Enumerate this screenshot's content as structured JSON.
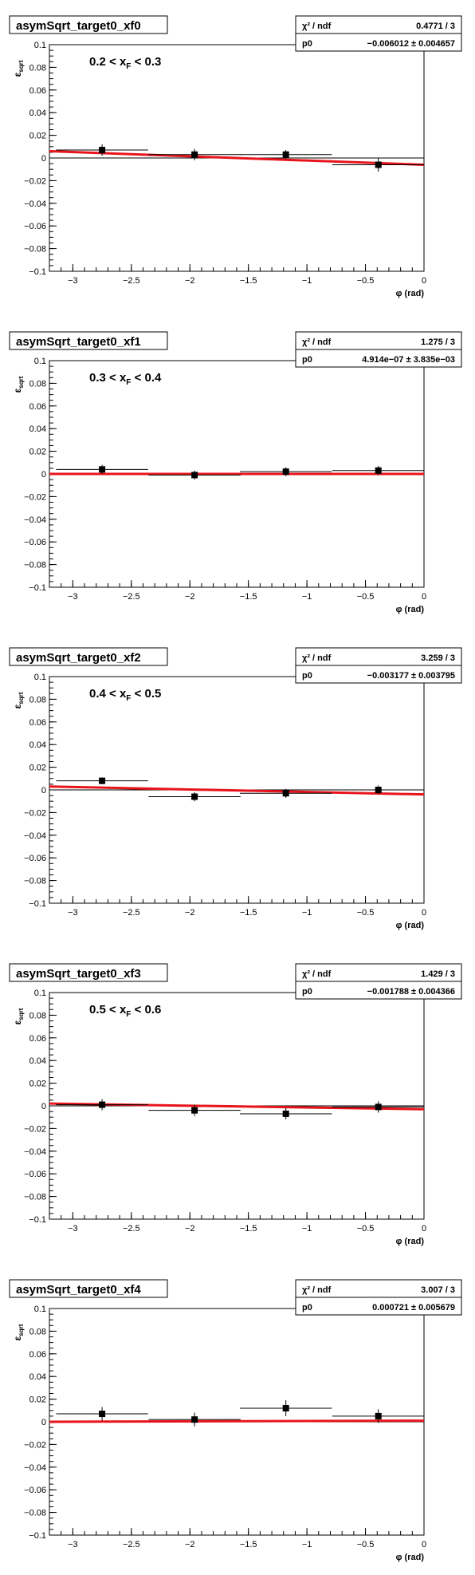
{
  "chart_data": [
    {
      "type": "scatter",
      "title": "asymSqrt_target0_xf0",
      "annotation": "0.2 < x_F < 0.3",
      "annotation_main": "0.2 < x",
      "annotation_sub": "F",
      "annotation_tail": " < 0.3",
      "xlabel": "φ (rad)",
      "ylabel_main": "ε",
      "ylabel_sub": "sqrt",
      "xlim": [
        -3.2,
        0
      ],
      "ylim": [
        -0.1,
        0.1
      ],
      "xticks": [
        -3,
        -2.5,
        -2,
        -1.5,
        -1,
        -0.5,
        0
      ],
      "xtick_labels": [
        "−3",
        "−2.5",
        "−2",
        "−1.5",
        "−1",
        "−0.5",
        "0"
      ],
      "yticks": [
        -0.1,
        -0.08,
        -0.06,
        -0.04,
        -0.02,
        0,
        0.02,
        0.04,
        0.06,
        0.08,
        0.1
      ],
      "ytick_labels": [
        "−0.1",
        "−0.08",
        "−0.06",
        "−0.04",
        "−0.02",
        "0",
        "0.02",
        "0.04",
        "0.06",
        "0.08",
        "0.1"
      ],
      "grid": false,
      "points": [
        {
          "x": -2.75,
          "y": 0.007,
          "xerr": 0.393,
          "yerr": 0.005
        },
        {
          "x": -1.96,
          "y": 0.003,
          "xerr": 0.393,
          "yerr": 0.005
        },
        {
          "x": -1.18,
          "y": 0.003,
          "xerr": 0.393,
          "yerr": 0.004
        },
        {
          "x": -0.39,
          "y": -0.006,
          "xerr": 0.393,
          "yerr": 0.006
        }
      ],
      "fit": {
        "p0": -0.006012,
        "start": 0.006,
        "end": -0.006
      },
      "stats": {
        "chi2_label": "χ² / ndf",
        "chi2_value": "0.4771 / 3",
        "p0_label": "p0",
        "p0_value": "−0.006012 ± 0.004657"
      }
    },
    {
      "type": "scatter",
      "title": "asymSqrt_target0_xf1",
      "annotation": "0.3 < x_F < 0.4",
      "annotation_main": "0.3 < x",
      "annotation_sub": "F",
      "annotation_tail": " < 0.4",
      "xlabel": "φ (rad)",
      "ylabel_main": "ε",
      "ylabel_sub": "sqrt",
      "xlim": [
        -3.2,
        0
      ],
      "ylim": [
        -0.1,
        0.1
      ],
      "xticks": [
        -3,
        -2.5,
        -2,
        -1.5,
        -1,
        -0.5,
        0
      ],
      "xtick_labels": [
        "−3",
        "−2.5",
        "−2",
        "−1.5",
        "−1",
        "−0.5",
        "0"
      ],
      "yticks": [
        -0.1,
        -0.08,
        -0.06,
        -0.04,
        -0.02,
        0,
        0.02,
        0.04,
        0.06,
        0.08,
        0.1
      ],
      "ytick_labels": [
        "−0.1",
        "−0.08",
        "−0.06",
        "−0.04",
        "−0.02",
        "0",
        "0.02",
        "0.04",
        "0.06",
        "0.08",
        "0.1"
      ],
      "grid": false,
      "points": [
        {
          "x": -2.75,
          "y": 0.004,
          "xerr": 0.393,
          "yerr": 0.004
        },
        {
          "x": -1.96,
          "y": -0.001,
          "xerr": 0.393,
          "yerr": 0.004
        },
        {
          "x": -1.18,
          "y": 0.002,
          "xerr": 0.393,
          "yerr": 0.004
        },
        {
          "x": -0.39,
          "y": 0.003,
          "xerr": 0.393,
          "yerr": 0.004
        }
      ],
      "fit": {
        "p0": 4.914e-07,
        "start": 0.0,
        "end": 0.0
      },
      "stats": {
        "chi2_label": "χ² / ndf",
        "chi2_value": "1.275 / 3",
        "p0_label": "p0",
        "p0_value": "4.914e−07 ± 3.835e−03"
      }
    },
    {
      "type": "scatter",
      "title": "asymSqrt_target0_xf2",
      "annotation": "0.4 < x_F < 0.5",
      "annotation_main": "0.4 < x",
      "annotation_sub": "F",
      "annotation_tail": " < 0.5",
      "xlabel": "φ (rad)",
      "ylabel_main": "ε",
      "ylabel_sub": "sqrt",
      "xlim": [
        -3.2,
        0
      ],
      "ylim": [
        -0.1,
        0.1
      ],
      "xticks": [
        -3,
        -2.5,
        -2,
        -1.5,
        -1,
        -0.5,
        0
      ],
      "xtick_labels": [
        "−3",
        "−2.5",
        "−2",
        "−1.5",
        "−1",
        "−0.5",
        "0"
      ],
      "yticks": [
        -0.1,
        -0.08,
        -0.06,
        -0.04,
        -0.02,
        0,
        0.02,
        0.04,
        0.06,
        0.08,
        0.1
      ],
      "ytick_labels": [
        "−0.1",
        "−0.08",
        "−0.06",
        "−0.04",
        "−0.02",
        "0",
        "0.02",
        "0.04",
        "0.06",
        "0.08",
        "0.1"
      ],
      "grid": false,
      "points": [
        {
          "x": -2.75,
          "y": 0.008,
          "xerr": 0.393,
          "yerr": 0.003
        },
        {
          "x": -1.96,
          "y": -0.006,
          "xerr": 0.393,
          "yerr": 0.004
        },
        {
          "x": -1.18,
          "y": -0.003,
          "xerr": 0.393,
          "yerr": 0.004
        },
        {
          "x": -0.39,
          "y": 0.0,
          "xerr": 0.393,
          "yerr": 0.004
        }
      ],
      "fit": {
        "p0": -0.003177,
        "start": 0.003,
        "end": -0.004
      },
      "stats": {
        "chi2_label": "χ² / ndf",
        "chi2_value": "3.259 / 3",
        "p0_label": "p0",
        "p0_value": "−0.003177 ± 0.003795"
      }
    },
    {
      "type": "scatter",
      "title": "asymSqrt_target0_xf3",
      "annotation": "0.5 < x_F < 0.6",
      "annotation_main": "0.5 < x",
      "annotation_sub": "F",
      "annotation_tail": " < 0.6",
      "xlabel": "φ (rad)",
      "ylabel_main": "ε",
      "ylabel_sub": "sqrt",
      "xlim": [
        -3.2,
        0
      ],
      "ylim": [
        -0.1,
        0.1
      ],
      "xticks": [
        -3,
        -2.5,
        -2,
        -1.5,
        -1,
        -0.5,
        0
      ],
      "xtick_labels": [
        "−3",
        "−2.5",
        "−2",
        "−1.5",
        "−1",
        "−0.5",
        "0"
      ],
      "yticks": [
        -0.1,
        -0.08,
        -0.06,
        -0.04,
        -0.02,
        0,
        0.02,
        0.04,
        0.06,
        0.08,
        0.1
      ],
      "ytick_labels": [
        "−0.1",
        "−0.08",
        "−0.06",
        "−0.04",
        "−0.02",
        "0",
        "0.02",
        "0.04",
        "0.06",
        "0.08",
        "0.1"
      ],
      "grid": false,
      "points": [
        {
          "x": -2.75,
          "y": 0.001,
          "xerr": 0.393,
          "yerr": 0.005
        },
        {
          "x": -1.96,
          "y": -0.004,
          "xerr": 0.393,
          "yerr": 0.005
        },
        {
          "x": -1.18,
          "y": -0.007,
          "xerr": 0.393,
          "yerr": 0.005
        },
        {
          "x": -0.39,
          "y": -0.001,
          "xerr": 0.393,
          "yerr": 0.005
        }
      ],
      "fit": {
        "p0": -0.001788,
        "start": 0.002,
        "end": -0.003
      },
      "stats": {
        "chi2_label": "χ² / ndf",
        "chi2_value": "1.429 / 3",
        "p0_label": "p0",
        "p0_value": "−0.001788 ± 0.004366"
      }
    },
    {
      "type": "scatter",
      "title": "asymSqrt_target0_xf4",
      "annotation": "",
      "annotation_main": "",
      "annotation_sub": "",
      "annotation_tail": "",
      "xlabel": "φ (rad)",
      "ylabel_main": "ε",
      "ylabel_sub": "sqrt",
      "xlim": [
        -3.2,
        0
      ],
      "ylim": [
        -0.1,
        0.1
      ],
      "xticks": [
        -3,
        -2.5,
        -2,
        -1.5,
        -1,
        -0.5,
        0
      ],
      "xtick_labels": [
        "−3",
        "−2.5",
        "−2",
        "−1.5",
        "−1",
        "−0.5",
        "0"
      ],
      "yticks": [
        -0.1,
        -0.08,
        -0.06,
        -0.04,
        -0.02,
        0,
        0.02,
        0.04,
        0.06,
        0.08,
        0.1
      ],
      "ytick_labels": [
        "−0.1",
        "−0.08",
        "−0.06",
        "−0.04",
        "−0.02",
        "0",
        "0.02",
        "0.04",
        "0.06",
        "0.08",
        "0.1"
      ],
      "grid": false,
      "points": [
        {
          "x": -2.75,
          "y": 0.007,
          "xerr": 0.393,
          "yerr": 0.006
        },
        {
          "x": -1.96,
          "y": 0.002,
          "xerr": 0.393,
          "yerr": 0.006
        },
        {
          "x": -1.18,
          "y": 0.012,
          "xerr": 0.393,
          "yerr": 0.007
        },
        {
          "x": -0.39,
          "y": 0.005,
          "xerr": 0.393,
          "yerr": 0.006
        }
      ],
      "fit": {
        "p0": 0.000721,
        "start": 0.0,
        "end": 0.001
      },
      "stats": {
        "chi2_label": "χ² / ndf",
        "chi2_value": "3.007 / 3",
        "p0_label": "p0",
        "p0_value": "0.000721 ± 0.005679"
      }
    }
  ]
}
